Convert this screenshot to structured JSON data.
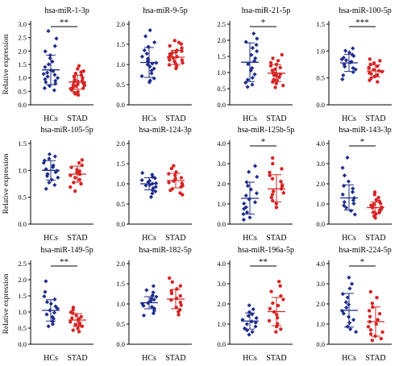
{
  "colors": {
    "hc": "#1f2d8a",
    "stad": "#d62525",
    "axis": "#000000"
  },
  "chart_data": [
    {
      "type": "scatter",
      "title": "hsa-miR-1-3p",
      "ylabel": "Relative expression",
      "categories": [
        "HCs",
        "STAD"
      ],
      "ylim": [
        0,
        3.0
      ],
      "yticks": [
        "0.0",
        "0.5",
        "1.0",
        "1.5",
        "2.0",
        "2.5",
        "3.0"
      ],
      "significance": "**",
      "series": [
        {
          "name": "HCs",
          "mean": 1.3,
          "sd_low": 0.75,
          "sd_high": 1.85,
          "values": [
            0.55,
            0.62,
            0.7,
            0.78,
            0.85,
            0.9,
            0.95,
            1.0,
            1.05,
            1.1,
            1.15,
            1.2,
            1.25,
            1.3,
            1.4,
            1.5,
            1.6,
            1.75,
            1.85,
            2.0,
            2.2,
            2.45,
            2.75
          ]
        },
        {
          "name": "STAD",
          "mean": 0.85,
          "sd_low": 0.58,
          "sd_high": 1.1,
          "values": [
            0.35,
            0.4,
            0.45,
            0.5,
            0.55,
            0.6,
            0.62,
            0.65,
            0.7,
            0.72,
            0.75,
            0.78,
            0.8,
            0.82,
            0.85,
            0.88,
            0.9,
            0.95,
            1.0,
            1.05,
            1.1,
            1.15,
            1.2,
            1.25,
            1.35,
            1.45
          ]
        }
      ]
    },
    {
      "type": "scatter",
      "title": "hsa-miR-9-5p",
      "ylabel": "",
      "categories": [
        "HCs",
        "STAD"
      ],
      "ylim": [
        0,
        2.0
      ],
      "yticks": [
        "0.0",
        "0.5",
        "1.0",
        "1.5",
        "2.0"
      ],
      "significance": "",
      "series": [
        {
          "name": "HCs",
          "mean": 1.05,
          "sd_low": 0.68,
          "sd_high": 1.42,
          "values": [
            0.55,
            0.6,
            0.65,
            0.72,
            0.78,
            0.85,
            0.9,
            0.95,
            1.0,
            1.02,
            1.05,
            1.08,
            1.1,
            1.15,
            1.2,
            1.28,
            1.35,
            1.45,
            1.55,
            1.7,
            1.85
          ]
        },
        {
          "name": "STAD",
          "mean": 1.18,
          "sd_low": 1.0,
          "sd_high": 1.35,
          "values": [
            0.9,
            0.95,
            1.0,
            1.02,
            1.05,
            1.08,
            1.1,
            1.12,
            1.15,
            1.17,
            1.2,
            1.22,
            1.25,
            1.28,
            1.3,
            1.33,
            1.35,
            1.4,
            1.45,
            1.5,
            1.55,
            1.6
          ]
        }
      ]
    },
    {
      "type": "scatter",
      "title": "hsa-miR-21-5p",
      "ylabel": "",
      "categories": [
        "HCs",
        "STAD"
      ],
      "ylim": [
        0,
        2.5
      ],
      "yticks": [
        "0.0",
        "0.5",
        "1.0",
        "1.5",
        "2.0",
        "2.5"
      ],
      "significance": "*",
      "series": [
        {
          "name": "HCs",
          "mean": 1.32,
          "sd_low": 0.72,
          "sd_high": 1.92,
          "values": [
            0.55,
            0.62,
            0.7,
            0.78,
            0.85,
            0.95,
            1.05,
            1.15,
            1.25,
            1.35,
            1.45,
            1.55,
            1.65,
            1.75,
            1.85,
            1.95,
            2.05,
            2.2
          ]
        },
        {
          "name": "STAD",
          "mean": 0.98,
          "sd_low": 0.72,
          "sd_high": 1.25,
          "values": [
            0.55,
            0.6,
            0.65,
            0.7,
            0.75,
            0.8,
            0.85,
            0.88,
            0.92,
            0.95,
            0.98,
            1.0,
            1.05,
            1.1,
            1.15,
            1.2,
            1.25,
            1.3,
            1.38,
            1.45,
            1.55
          ]
        }
      ]
    },
    {
      "type": "scatter",
      "title": "hsa-miR-100-5p",
      "ylabel": "",
      "categories": [
        "HCs",
        "STAD"
      ],
      "ylim": [
        0,
        1.5
      ],
      "yticks": [
        "0.0",
        "0.5",
        "1.0",
        "1.5"
      ],
      "significance": "***",
      "series": [
        {
          "name": "HCs",
          "mean": 0.78,
          "sd_low": 0.62,
          "sd_high": 0.94,
          "values": [
            0.48,
            0.55,
            0.6,
            0.65,
            0.68,
            0.72,
            0.75,
            0.78,
            0.8,
            0.83,
            0.85,
            0.88,
            0.9,
            0.93,
            0.97,
            1.0,
            1.05
          ]
        },
        {
          "name": "STAD",
          "mean": 0.63,
          "sd_low": 0.52,
          "sd_high": 0.74,
          "values": [
            0.42,
            0.45,
            0.5,
            0.52,
            0.55,
            0.58,
            0.6,
            0.62,
            0.64,
            0.66,
            0.68,
            0.7,
            0.72,
            0.75,
            0.78,
            0.82,
            0.85
          ]
        }
      ]
    },
    {
      "type": "scatter",
      "title": "hsa-miR-105-5p",
      "ylabel": "Relative expression",
      "categories": [
        "HCs",
        "STAD"
      ],
      "ylim": [
        0,
        1.5
      ],
      "yticks": [
        "0.0",
        "0.5",
        "1.0",
        "1.5"
      ],
      "significance": "",
      "series": [
        {
          "name": "HCs",
          "mean": 1.0,
          "sd_low": 0.82,
          "sd_high": 1.18,
          "values": [
            0.65,
            0.72,
            0.78,
            0.82,
            0.86,
            0.9,
            0.94,
            0.97,
            1.0,
            1.03,
            1.06,
            1.1,
            1.14,
            1.18,
            1.22,
            1.26,
            1.3
          ]
        },
        {
          "name": "STAD",
          "mean": 0.93,
          "sd_low": 0.78,
          "sd_high": 1.08,
          "values": [
            0.62,
            0.68,
            0.74,
            0.78,
            0.82,
            0.86,
            0.9,
            0.93,
            0.96,
            0.99,
            1.02,
            1.06,
            1.1,
            1.14,
            1.2
          ]
        }
      ]
    },
    {
      "type": "scatter",
      "title": "hsa-miR-124-3p",
      "ylabel": "",
      "categories": [
        "HCs",
        "STAD"
      ],
      "ylim": [
        0,
        2.0
      ],
      "yticks": [
        "0.0",
        "0.5",
        "1.0",
        "1.5",
        "2.0"
      ],
      "significance": "",
      "series": [
        {
          "name": "HCs",
          "mean": 1.0,
          "sd_low": 0.85,
          "sd_high": 1.15,
          "values": [
            0.68,
            0.75,
            0.8,
            0.85,
            0.88,
            0.92,
            0.95,
            0.98,
            1.0,
            1.02,
            1.05,
            1.08,
            1.1,
            1.14,
            1.18,
            1.22,
            1.28
          ]
        },
        {
          "name": "STAD",
          "mean": 1.08,
          "sd_low": 0.9,
          "sd_high": 1.26,
          "values": [
            0.72,
            0.78,
            0.84,
            0.88,
            0.92,
            0.96,
            1.0,
            1.04,
            1.08,
            1.12,
            1.16,
            1.2,
            1.25,
            1.3,
            1.38,
            1.45
          ]
        }
      ]
    },
    {
      "type": "scatter",
      "title": "hsa-miR-125b-5p",
      "ylabel": "",
      "categories": [
        "HCs",
        "STAD"
      ],
      "ylim": [
        0,
        4.0
      ],
      "yticks": [
        "0.0",
        "1.0",
        "2.0",
        "3.0",
        "4.0"
      ],
      "significance": "*",
      "series": [
        {
          "name": "HCs",
          "mean": 1.28,
          "sd_low": 0.5,
          "sd_high": 2.08,
          "values": [
            0.2,
            0.35,
            0.5,
            0.6,
            0.75,
            0.85,
            1.0,
            1.1,
            1.25,
            1.4,
            1.55,
            1.7,
            1.9,
            2.1,
            2.35,
            2.6,
            2.9
          ]
        },
        {
          "name": "STAD",
          "mean": 1.75,
          "sd_low": 1.1,
          "sd_high": 2.45,
          "values": [
            0.85,
            1.0,
            1.15,
            1.3,
            1.45,
            1.55,
            1.65,
            1.75,
            1.85,
            1.95,
            2.1,
            2.25,
            2.4,
            2.55,
            2.75,
            3.0,
            3.3
          ]
        }
      ]
    },
    {
      "type": "scatter",
      "title": "hsa-miR-143-3p",
      "ylabel": "",
      "categories": [
        "HCs",
        "STAD"
      ],
      "ylim": [
        0,
        4.0
      ],
      "yticks": [
        "0.0",
        "1.0",
        "2.0",
        "3.0",
        "4.0"
      ],
      "significance": "*",
      "series": [
        {
          "name": "HCs",
          "mean": 1.3,
          "sd_low": 0.7,
          "sd_high": 1.95,
          "values": [
            0.5,
            0.65,
            0.8,
            0.9,
            1.0,
            1.1,
            1.2,
            1.3,
            1.45,
            1.6,
            1.75,
            1.9,
            2.1,
            2.4,
            2.8,
            3.3
          ]
        },
        {
          "name": "STAD",
          "mean": 0.82,
          "sd_low": 0.55,
          "sd_high": 1.1,
          "values": [
            0.3,
            0.4,
            0.5,
            0.55,
            0.6,
            0.65,
            0.7,
            0.75,
            0.8,
            0.85,
            0.9,
            0.95,
            1.0,
            1.05,
            1.12,
            1.2,
            1.3,
            1.45,
            1.6
          ]
        }
      ]
    },
    {
      "type": "scatter",
      "title": "hsa-miR-149-5p",
      "ylabel": "Relative expression",
      "categories": [
        "HCs",
        "STAD"
      ],
      "ylim": [
        0,
        2.5
      ],
      "yticks": [
        "0.0",
        "0.5",
        "1.0",
        "1.5",
        "2.0",
        "2.5"
      ],
      "significance": "**",
      "series": [
        {
          "name": "HCs",
          "mean": 1.05,
          "sd_low": 0.72,
          "sd_high": 1.38,
          "values": [
            0.55,
            0.62,
            0.7,
            0.78,
            0.85,
            0.92,
            0.98,
            1.05,
            1.1,
            1.18,
            1.25,
            1.32,
            1.4,
            1.5,
            1.62,
            1.95
          ]
        },
        {
          "name": "STAD",
          "mean": 0.75,
          "sd_low": 0.55,
          "sd_high": 0.95,
          "values": [
            0.4,
            0.45,
            0.5,
            0.55,
            0.58,
            0.62,
            0.66,
            0.7,
            0.74,
            0.78,
            0.82,
            0.86,
            0.9,
            0.95,
            1.0,
            1.08,
            1.15
          ]
        }
      ]
    },
    {
      "type": "scatter",
      "title": "hsa-miR-182-5p",
      "ylabel": "",
      "categories": [
        "HCs",
        "STAD"
      ],
      "ylim": [
        0,
        2.0
      ],
      "yticks": [
        "0.0",
        "0.5",
        "1.0",
        "1.5",
        "2.0"
      ],
      "significance": "",
      "series": [
        {
          "name": "HCs",
          "mean": 1.03,
          "sd_low": 0.88,
          "sd_high": 1.18,
          "values": [
            0.72,
            0.78,
            0.84,
            0.88,
            0.92,
            0.96,
            1.0,
            1.03,
            1.06,
            1.1,
            1.14,
            1.18,
            1.22,
            1.28,
            1.35,
            1.45
          ]
        },
        {
          "name": "STAD",
          "mean": 1.12,
          "sd_low": 0.88,
          "sd_high": 1.36,
          "values": [
            0.72,
            0.8,
            0.86,
            0.92,
            0.98,
            1.04,
            1.1,
            1.15,
            1.2,
            1.26,
            1.32,
            1.38,
            1.45,
            1.55,
            1.65
          ]
        }
      ]
    },
    {
      "type": "scatter",
      "title": "hsa-miR-196a-5p",
      "ylabel": "",
      "categories": [
        "HCs",
        "STAD"
      ],
      "ylim": [
        0,
        4.0
      ],
      "yticks": [
        "0.0",
        "1.0",
        "2.0",
        "3.0",
        "4.0"
      ],
      "significance": "**",
      "series": [
        {
          "name": "HCs",
          "mean": 1.15,
          "sd_low": 0.75,
          "sd_high": 1.55,
          "values": [
            0.45,
            0.6,
            0.7,
            0.8,
            0.9,
            1.0,
            1.08,
            1.15,
            1.22,
            1.3,
            1.4,
            1.5,
            1.6,
            1.75,
            1.95
          ]
        },
        {
          "name": "STAD",
          "mean": 1.62,
          "sd_low": 0.92,
          "sd_high": 2.32,
          "values": [
            0.6,
            0.75,
            0.9,
            1.0,
            1.15,
            1.3,
            1.45,
            1.6,
            1.75,
            1.9,
            2.05,
            2.2,
            2.4,
            2.6,
            2.9,
            3.1
          ]
        }
      ]
    },
    {
      "type": "scatter",
      "title": "hsa-miR-224-5p",
      "ylabel": "",
      "categories": [
        "HCs",
        "STAD"
      ],
      "ylim": [
        0,
        4.0
      ],
      "yticks": [
        "0.0",
        "1.0",
        "2.0",
        "3.0",
        "4.0"
      ],
      "significance": "*",
      "series": [
        {
          "name": "HCs",
          "mean": 1.68,
          "sd_low": 0.85,
          "sd_high": 2.52,
          "values": [
            0.6,
            0.75,
            0.9,
            1.05,
            1.2,
            1.35,
            1.5,
            1.65,
            1.8,
            1.95,
            2.1,
            2.3,
            2.5,
            2.75,
            3.0,
            3.3
          ]
        },
        {
          "name": "STAD",
          "mean": 1.12,
          "sd_low": 0.4,
          "sd_high": 1.85,
          "values": [
            0.2,
            0.3,
            0.4,
            0.5,
            0.6,
            0.7,
            0.85,
            1.0,
            1.1,
            1.2,
            1.35,
            1.5,
            1.65,
            1.85,
            2.05,
            2.3,
            2.6
          ]
        }
      ]
    }
  ]
}
